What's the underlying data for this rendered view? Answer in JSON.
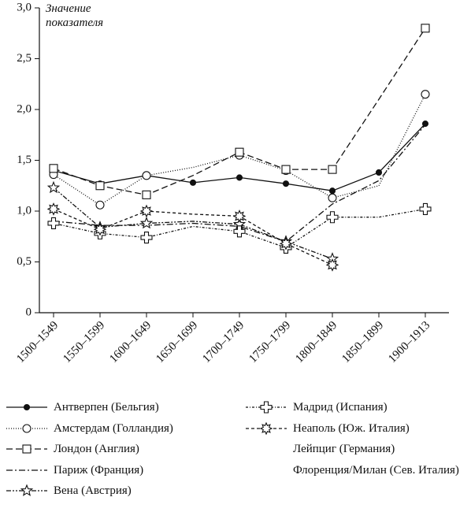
{
  "chart_data": {
    "type": "line",
    "y_label": "Значение показателя",
    "categories": [
      "1500–1549",
      "1550–1599",
      "1600–1649",
      "1650–1699",
      "1700–1749",
      "1750–1799",
      "1800–1849",
      "1850–1899",
      "1900–1913"
    ],
    "ylim": [
      0,
      3.0
    ],
    "yticks": [
      0,
      {
        "value": 0.5,
        "label": "0,5"
      },
      {
        "value": 1.0,
        "label": "1,0"
      },
      {
        "value": 1.5,
        "label": "1,5"
      },
      {
        "value": 2.0,
        "label": "2,0"
      },
      {
        "value": 2.5,
        "label": "2,5"
      },
      {
        "value": 3.0,
        "label": "3,0"
      }
    ],
    "series": [
      {
        "name": "Антверпен (Бельгия)",
        "color": "#111111",
        "dash": "none",
        "marker": "dot",
        "values": [
          1.4,
          1.27,
          1.35,
          1.28,
          1.33,
          1.27,
          1.2,
          1.38,
          1.86
        ]
      },
      {
        "name": "Амстердам (Голландия)",
        "color": "#111111",
        "dash": "1 2",
        "marker": "circle",
        "values": [
          1.36,
          1.06,
          1.35,
          1.43,
          1.55,
          1.4,
          1.13,
          1.25,
          2.15
        ]
      },
      {
        "name": "Лондон (Англия)",
        "color": "#111111",
        "dash": "8 4",
        "marker": "square",
        "values": [
          1.42,
          1.25,
          1.16,
          1.35,
          1.58,
          1.41,
          1.41,
          2.1,
          2.8
        ]
      },
      {
        "name": "Париж (Франция)",
        "color": "#111111",
        "dash": "8 3 2 3",
        "marker": "none",
        "values": [
          0.9,
          0.86,
          0.86,
          0.88,
          0.85,
          0.7,
          1.07,
          1.3,
          1.85
        ]
      },
      {
        "name": "Вена (Австрия)",
        "color": "#111111",
        "dash": "6 2 2 2 2 2",
        "marker": "star",
        "values": [
          1.23,
          0.84,
          0.88,
          0.9,
          0.87,
          0.7,
          0.53,
          null,
          null
        ]
      },
      {
        "name": "Мадрид (Испания)",
        "color": "#111111",
        "dash": "3 2 1 2",
        "marker": "cross",
        "values": [
          0.88,
          0.78,
          0.74,
          0.85,
          0.8,
          0.64,
          0.94,
          0.94,
          1.02
        ]
      },
      {
        "name": "Неаполь (Юж. Италия)",
        "color": "#111111",
        "dash": "4 3",
        "marker": "star8",
        "values": [
          1.02,
          0.82,
          1.0,
          0.97,
          0.95,
          0.68,
          0.47,
          null,
          null
        ]
      }
    ],
    "legend_only": [
      "Лейпциг (Германия)",
      "Флоренция/Милан (Сев. Италия)"
    ]
  }
}
